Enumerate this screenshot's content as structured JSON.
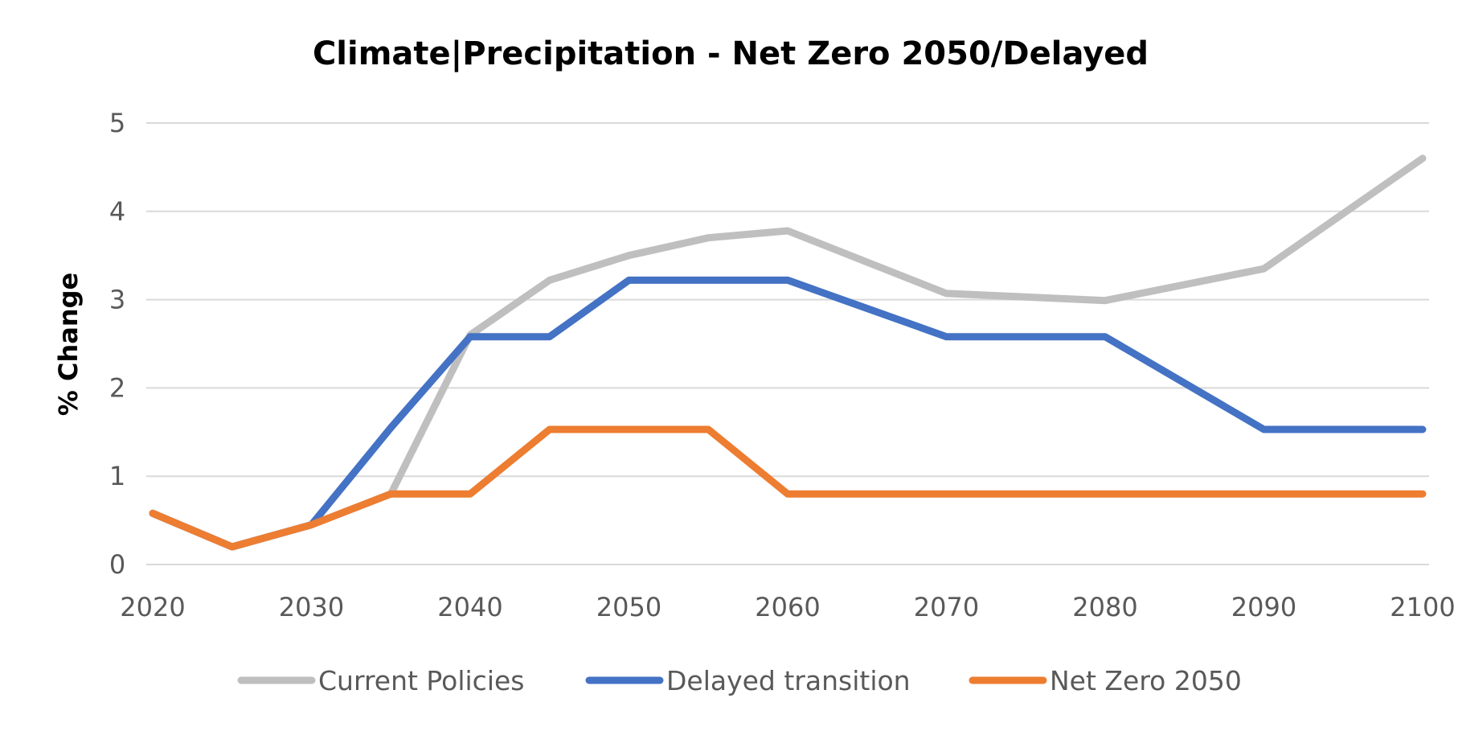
{
  "chart_data": {
    "type": "line",
    "title": "Climate|Precipitation  - Net Zero 2050/Delayed",
    "xlabel": "",
    "ylabel": "% Change",
    "x": [
      2020,
      2025,
      2030,
      2035,
      2040,
      2045,
      2050,
      2055,
      2060,
      2070,
      2080,
      2090,
      2100
    ],
    "x_tick_labels": [
      "2020",
      "2030",
      "2040",
      "2050",
      "2060",
      "2070",
      "2080",
      "2090",
      "2100"
    ],
    "y_tick_labels": [
      "0",
      "1",
      "2",
      "3",
      "4",
      "5"
    ],
    "ylim": [
      0,
      5
    ],
    "grid": true,
    "legend_position": "bottom",
    "series": [
      {
        "name": "Current Policies",
        "color": "#bfbfbf",
        "values": [
          0.58,
          0.2,
          0.45,
          0.8,
          2.6,
          3.22,
          3.5,
          3.7,
          3.78,
          3.07,
          2.99,
          3.35,
          4.6
        ]
      },
      {
        "name": "Delayed transition",
        "color": "#4472c4",
        "values": [
          0.58,
          0.2,
          0.45,
          1.55,
          2.58,
          2.58,
          3.22,
          3.22,
          3.22,
          2.58,
          2.58,
          1.53,
          1.53
        ]
      },
      {
        "name": "Net Zero 2050",
        "color": "#ed7d31",
        "values": [
          0.58,
          0.2,
          0.45,
          0.8,
          0.8,
          1.53,
          1.53,
          1.53,
          0.8,
          0.8,
          0.8,
          0.8,
          0.8
        ]
      }
    ]
  }
}
